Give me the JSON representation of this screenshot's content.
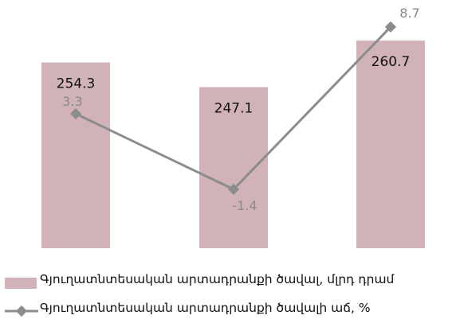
{
  "chart_data": {
    "type": "bar",
    "categories": [
      "",
      "",
      ""
    ],
    "series": [
      {
        "name": "Գյուղատնտեսական արտադրանքի ծավալ, մլրդ դրամ",
        "type": "bar",
        "values": [
          254.3,
          247.1,
          260.7
        ],
        "labels": [
          "254.3",
          "247.1",
          "260.7"
        ],
        "color": "#d0b2b8"
      },
      {
        "name": "Գյուղատնտեսական արտադրանքի ծավալի աճ, %",
        "type": "line",
        "values": [
          3.3,
          -1.4,
          8.7
        ],
        "labels": [
          "3.3",
          "-1.4",
          "8.7"
        ],
        "color": "#8c8c8c"
      }
    ],
    "title": "",
    "xlabel": "",
    "ylabel": "",
    "grid": false,
    "legend": "bottom"
  },
  "legend": {
    "bar_label": "Գյուղատնտեսական արտադրանքի ծավալ, մլրդ դրամ",
    "line_label": "Գյուղատնտեսական արտադրանքի ծավալի աճ, %"
  }
}
